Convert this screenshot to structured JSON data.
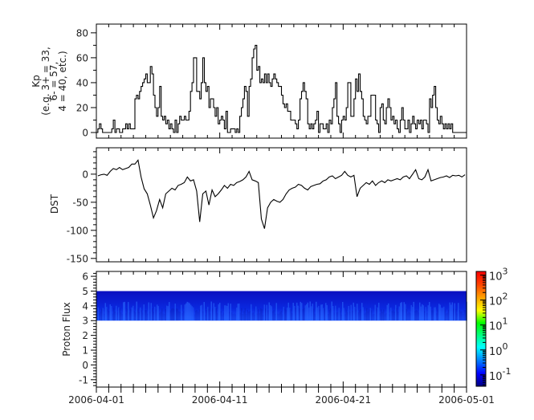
{
  "chart_data": [
    {
      "type": "line",
      "ylabel": [
        "Kp",
        "(e.g. 3+ = 33,",
        "6- = 57,",
        "4 = 40, etc.)"
      ],
      "ylim": [
        -4.5,
        87
      ],
      "yticks": [
        "0",
        "20",
        "40",
        "60",
        "80"
      ],
      "x_start": "2006-04-01",
      "x_end": "2006-05-01",
      "sample_interval_hours": 3,
      "step": true,
      "values": [
        0,
        3,
        7,
        3,
        0,
        0,
        0,
        0,
        0,
        0,
        3,
        10,
        0,
        3,
        3,
        0,
        0,
        3,
        3,
        7,
        3,
        7,
        3,
        3,
        3,
        27,
        30,
        27,
        33,
        37,
        40,
        43,
        47,
        40,
        40,
        53,
        47,
        30,
        20,
        13,
        20,
        37,
        13,
        10,
        13,
        7,
        10,
        3,
        7,
        3,
        0,
        10,
        0,
        7,
        13,
        10,
        10,
        13,
        10,
        10,
        17,
        33,
        40,
        60,
        60,
        33,
        33,
        27,
        40,
        60,
        40,
        33,
        37,
        20,
        27,
        27,
        20,
        13,
        20,
        7,
        10,
        13,
        10,
        3,
        17,
        0,
        0,
        3,
        3,
        3,
        0,
        3,
        0,
        13,
        20,
        27,
        37,
        33,
        13,
        37,
        43,
        60,
        67,
        70,
        50,
        53,
        40,
        43,
        40,
        47,
        40,
        47,
        40,
        37,
        43,
        47,
        43,
        40,
        37,
        37,
        30,
        23,
        20,
        23,
        17,
        17,
        10,
        10,
        10,
        7,
        3,
        10,
        27,
        33,
        40,
        33,
        27,
        7,
        3,
        7,
        3,
        7,
        10,
        17,
        0,
        7,
        7,
        3,
        3,
        7,
        0,
        10,
        7,
        20,
        27,
        40,
        13,
        7,
        0,
        10,
        13,
        10,
        20,
        40,
        40,
        13,
        13,
        27,
        43,
        33,
        47,
        33,
        27,
        13,
        10,
        7,
        13,
        13,
        30,
        30,
        30,
        10,
        7,
        0,
        20,
        23,
        10,
        7,
        20,
        27,
        20,
        10,
        13,
        7,
        10,
        3,
        0,
        10,
        20,
        10,
        3,
        3,
        10,
        0,
        7,
        13,
        7,
        3,
        10,
        7,
        10,
        3,
        10,
        10,
        7,
        0,
        27,
        20,
        30,
        37,
        20,
        10,
        7,
        13,
        7,
        3,
        7,
        3,
        7,
        3,
        7,
        0,
        0,
        0,
        0,
        0,
        0,
        0,
        0,
        0
      ]
    },
    {
      "type": "line",
      "ylabel": "DST",
      "ylim": [
        -156,
        47
      ],
      "yticks": [
        "0",
        "-50",
        "-100",
        "-150"
      ],
      "x_start": "2006-04-01",
      "x_end": "2006-05-01",
      "sample_interval_hours": 6,
      "values": [
        -3,
        -1,
        0,
        -2,
        5,
        10,
        8,
        12,
        8,
        10,
        12,
        18,
        18,
        25,
        -5,
        -26,
        -35,
        -55,
        -78,
        -65,
        -45,
        -60,
        -35,
        -30,
        -25,
        -28,
        -20,
        -18,
        -15,
        -5,
        -12,
        -10,
        -30,
        -85,
        -35,
        -30,
        -55,
        -28,
        -40,
        -35,
        -28,
        -20,
        -25,
        -18,
        -20,
        -15,
        -13,
        -10,
        -5,
        5,
        -10,
        -12,
        -15,
        -80,
        -97,
        -60,
        -50,
        -45,
        -48,
        -50,
        -45,
        -35,
        -28,
        -25,
        -23,
        -18,
        -20,
        -25,
        -28,
        -22,
        -20,
        -18,
        -17,
        -12,
        -10,
        -5,
        -3,
        -8,
        -5,
        -2,
        5,
        -2,
        -5,
        -2,
        -40,
        -25,
        -20,
        -15,
        -18,
        -12,
        -20,
        -15,
        -12,
        -15,
        -10,
        -12,
        -10,
        -8,
        -10,
        -5,
        -3,
        -8,
        0,
        8,
        -8,
        -10,
        -5,
        8,
        -12,
        -10,
        -8,
        -6,
        -5,
        -3,
        -6,
        -2,
        -3,
        -2,
        -5,
        -1
      ]
    },
    {
      "type": "heatmap",
      "ylabel": "Proton Flux",
      "ylim": [
        -1.5,
        6.33
      ],
      "yticks": [
        "-1",
        "0",
        "1",
        "2",
        "3",
        "4",
        "5",
        "6"
      ],
      "band_y_range": [
        3,
        5
      ],
      "colorscale": "jet",
      "color_scale_log": true,
      "color_range": [
        0.035,
        1400
      ],
      "colorbar_ticks": [
        {
          "base": "10",
          "exp": "3"
        },
        {
          "base": "10",
          "exp": "2"
        },
        {
          "base": "10",
          "exp": "1"
        },
        {
          "base": "10",
          "exp": "0"
        },
        {
          "base": "10",
          "exp": "-1"
        }
      ]
    }
  ],
  "xaxis": {
    "tick_labels": [
      "2006-04-01",
      "2006-04-11",
      "2006-04-21",
      "2006-05-01"
    ],
    "minor_tick_interval_days": 1
  },
  "colors": {
    "line": "#000000",
    "band_top": "#0a14c8",
    "band_bottom": "#1e50ff"
  }
}
